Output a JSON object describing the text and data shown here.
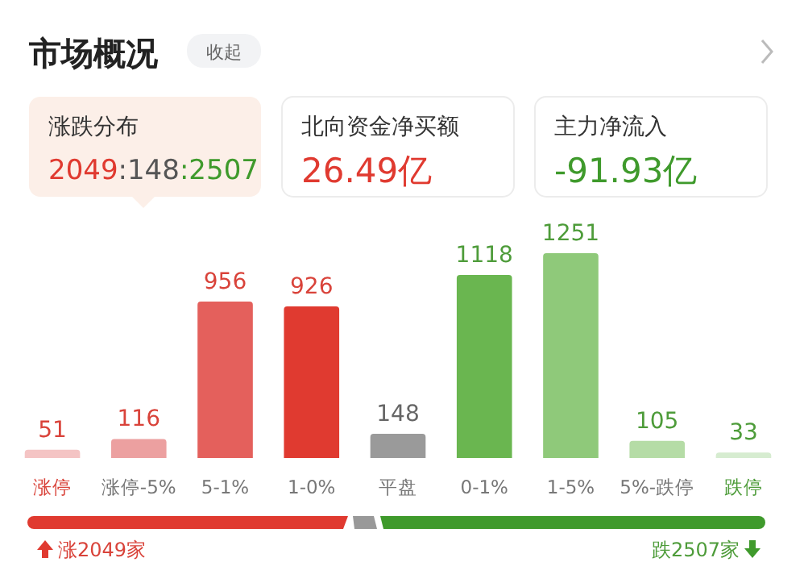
{
  "chart_data": {
    "type": "bar",
    "title": "市场概况",
    "categories": [
      "涨停",
      "涨停-5%",
      "5-1%",
      "1-0%",
      "平盘",
      "0-1%",
      "1-5%",
      "5%-跌停",
      "跌停"
    ],
    "values": [
      51,
      116,
      956,
      926,
      148,
      1118,
      1251,
      105,
      33
    ],
    "colors": [
      "#f4c4c4",
      "#eca0a0",
      "#e4605c",
      "#e03a30",
      "#9a9a9a",
      "#6ab650",
      "#8fc97a",
      "#b5dca6",
      "#d6ecd0"
    ],
    "data_labels": true,
    "annotations": [
      "收起",
      "涨跌分布",
      "2049:148:2507",
      "北向资金净买额",
      "26.49亿",
      "主力净流入",
      "-91.93亿",
      "涨2049家",
      "跌2507家"
    ]
  }
}
